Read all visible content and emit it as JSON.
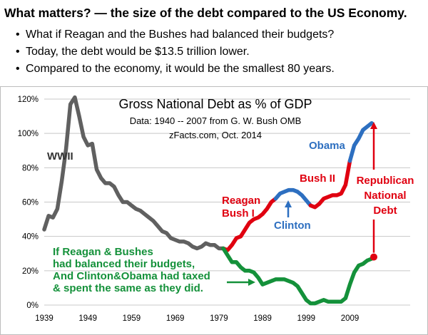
{
  "header": {
    "headline": "What matters? — the size of the debt compared to the US Economy.",
    "bullets": [
      "What if Reagan and the Bushes had balanced their budgets?",
      "Today, the debt would be $13.5 trillion lower.",
      "Compared to the economy, it would be the smallest 80 years."
    ]
  },
  "colors": {
    "gray": "#606060",
    "red": "#e00010",
    "blue": "#2d6fc0",
    "green": "#14913a",
    "title_blue": "#1f4e9a",
    "grid": "#c8c8c8"
  },
  "chart_data": {
    "type": "line",
    "title": "Gross National Debt  as % of GDP",
    "subtitle_lines": [
      "Data: 1940 -- 2007 from G. W. Bush OMB",
      "zFacts.com, Oct. 2014"
    ],
    "xlim": [
      1939,
      2013
    ],
    "ylim": [
      0,
      120
    ],
    "x_ticks": [
      "1939",
      "1949",
      "1959",
      "1969",
      "1979",
      "1989",
      "1999",
      "2009"
    ],
    "y_ticks": [
      "0%",
      "20%",
      "40%",
      "60%",
      "80%",
      "100%",
      "120%"
    ],
    "series": [
      {
        "color_key": "gray",
        "points": [
          [
            1939,
            44
          ],
          [
            1940,
            52
          ],
          [
            1941,
            51
          ],
          [
            1942,
            56
          ],
          [
            1943,
            72
          ],
          [
            1944,
            91
          ],
          [
            1945,
            117
          ],
          [
            1946,
            121
          ],
          [
            1947,
            110
          ],
          [
            1948,
            98
          ],
          [
            1949,
            93
          ],
          [
            1950,
            94
          ],
          [
            1951,
            79
          ],
          [
            1952,
            74
          ],
          [
            1953,
            71
          ],
          [
            1954,
            71
          ],
          [
            1955,
            69
          ],
          [
            1956,
            64
          ],
          [
            1957,
            60
          ],
          [
            1958,
            60
          ],
          [
            1959,
            58
          ],
          [
            1960,
            56
          ],
          [
            1961,
            55
          ],
          [
            1962,
            53
          ],
          [
            1963,
            51
          ],
          [
            1964,
            49
          ],
          [
            1965,
            46
          ],
          [
            1966,
            43
          ],
          [
            1967,
            42
          ],
          [
            1968,
            39
          ],
          [
            1969,
            38
          ],
          [
            1970,
            37
          ],
          [
            1971,
            37
          ],
          [
            1972,
            36
          ],
          [
            1973,
            34
          ],
          [
            1974,
            33
          ],
          [
            1975,
            34
          ],
          [
            1976,
            36
          ],
          [
            1977,
            35
          ],
          [
            1978,
            35
          ],
          [
            1979,
            33
          ],
          [
            1980,
            33
          ]
        ]
      },
      {
        "color_key": "red",
        "points": [
          [
            1980,
            33
          ],
          [
            1981,
            32
          ],
          [
            1982,
            35
          ],
          [
            1983,
            39
          ],
          [
            1984,
            40
          ],
          [
            1985,
            44
          ],
          [
            1986,
            48
          ],
          [
            1987,
            50
          ],
          [
            1988,
            51
          ],
          [
            1989,
            53
          ],
          [
            1990,
            56
          ],
          [
            1991,
            60
          ],
          [
            1992,
            62
          ]
        ]
      },
      {
        "color_key": "blue",
        "points": [
          [
            1992,
            62
          ],
          [
            1993,
            65
          ],
          [
            1994,
            66
          ],
          [
            1995,
            67
          ],
          [
            1996,
            67
          ],
          [
            1997,
            66
          ],
          [
            1998,
            64
          ],
          [
            1999,
            61
          ],
          [
            2000,
            58
          ]
        ]
      },
      {
        "color_key": "red",
        "points": [
          [
            2000,
            58
          ],
          [
            2001,
            57
          ],
          [
            2002,
            59
          ],
          [
            2003,
            62
          ],
          [
            2004,
            63
          ],
          [
            2005,
            64
          ],
          [
            2006,
            64
          ],
          [
            2007,
            65
          ],
          [
            2008,
            70
          ],
          [
            2009,
            84
          ]
        ]
      },
      {
        "color_key": "blue",
        "points": [
          [
            2009,
            84
          ],
          [
            2010,
            93
          ],
          [
            2011,
            97
          ],
          [
            2012,
            102
          ],
          [
            2013,
            104
          ],
          [
            2014,
            106
          ]
        ]
      },
      {
        "color_key": "green",
        "points": [
          [
            1980,
            33
          ],
          [
            1981,
            29
          ],
          [
            1982,
            25
          ],
          [
            1983,
            25
          ],
          [
            1984,
            22
          ],
          [
            1985,
            20
          ],
          [
            1986,
            20
          ],
          [
            1987,
            19
          ],
          [
            1988,
            16
          ],
          [
            1989,
            12
          ],
          [
            1990,
            13
          ],
          [
            1991,
            14
          ],
          [
            1992,
            15
          ],
          [
            1993,
            15
          ],
          [
            1994,
            15
          ],
          [
            1995,
            14
          ],
          [
            1996,
            13
          ],
          [
            1997,
            11
          ],
          [
            1998,
            7
          ],
          [
            1999,
            3
          ],
          [
            2000,
            1
          ],
          [
            2001,
            1
          ],
          [
            2002,
            2
          ],
          [
            2003,
            3
          ],
          [
            2004,
            2
          ],
          [
            2005,
            2
          ],
          [
            2006,
            2
          ],
          [
            2007,
            2
          ],
          [
            2008,
            4
          ],
          [
            2009,
            12
          ],
          [
            2010,
            19
          ],
          [
            2011,
            23
          ],
          [
            2012,
            24
          ],
          [
            2013,
            26
          ],
          [
            2014,
            27
          ]
        ]
      }
    ],
    "annotations": {
      "wwii": "WWII",
      "reagan": [
        "Reagan",
        "Bush I"
      ],
      "clinton": "Clinton",
      "bush2": "Bush II",
      "obama": "Obama",
      "republican": [
        "Republican",
        "National",
        "Debt"
      ],
      "green_note": [
        "If Reagan & Bushes",
        "had balanced their budgets,",
        "And Clinton&Obama had taxed",
        "& spent the same as they did."
      ]
    },
    "markers": {
      "republican_dot": [
        2014,
        28
      ],
      "republican_arrow_top": [
        2014,
        108
      ]
    }
  }
}
